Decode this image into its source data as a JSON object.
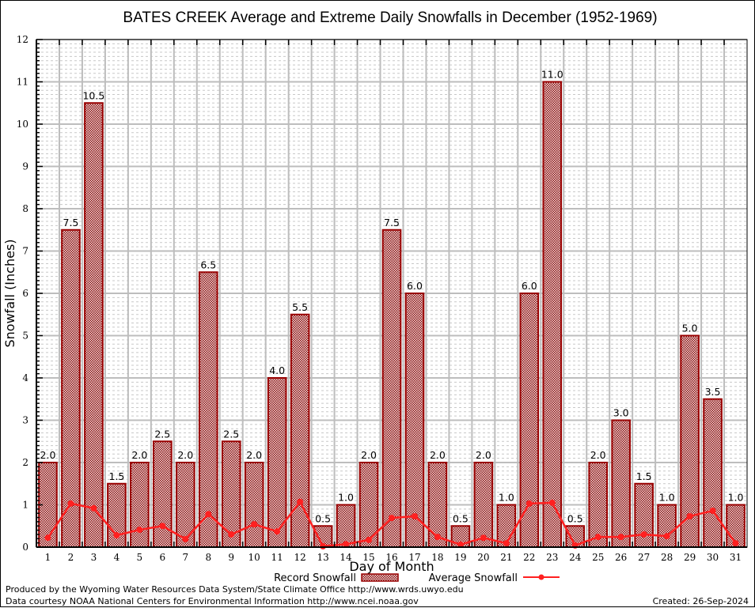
{
  "chart_data": {
    "type": "bar",
    "title": "BATES CREEK Average and Extreme Daily Snowfalls in December (1952-1969)",
    "xlabel": "Day of Month",
    "ylabel": "Snowfall (Inches)",
    "ylim": [
      0,
      12
    ],
    "yticks": [
      0,
      1,
      2,
      3,
      4,
      5,
      6,
      7,
      8,
      9,
      10,
      11,
      12
    ],
    "y_minor_step": 0.1,
    "grid": true,
    "categories": [
      "1",
      "2",
      "3",
      "4",
      "5",
      "6",
      "7",
      "8",
      "9",
      "10",
      "11",
      "12",
      "13",
      "14",
      "15",
      "16",
      "17",
      "18",
      "19",
      "20",
      "21",
      "22",
      "23",
      "24",
      "25",
      "26",
      "27",
      "28",
      "29",
      "30",
      "31"
    ],
    "series": [
      {
        "name": "Record Snowfall",
        "kind": "bar",
        "color": "#990000",
        "values": [
          2.0,
          7.5,
          10.5,
          1.5,
          2.0,
          2.5,
          2.0,
          6.5,
          2.5,
          2.0,
          4.0,
          5.5,
          0.5,
          1.0,
          2.0,
          7.5,
          6.0,
          2.0,
          0.5,
          2.0,
          1.0,
          6.0,
          11.0,
          0.5,
          2.0,
          3.0,
          1.5,
          1.0,
          5.0,
          3.5,
          1.0
        ],
        "labels": [
          "2.0",
          "7.5",
          "10.5",
          "1.5",
          "2.0",
          "2.5",
          "2.0",
          "6.5",
          "2.5",
          "2.0",
          "4.0",
          "5.5",
          "0.5",
          "1.0",
          "2.0",
          "7.5",
          "6.0",
          "2.0",
          "0.5",
          "2.0",
          "1.0",
          "6.0",
          "11.0",
          "0.5",
          "2.0",
          "3.0",
          "1.5",
          "1.0",
          "5.0",
          "3.5",
          "1.0"
        ]
      },
      {
        "name": "Average Snowfall",
        "kind": "line",
        "color": "#ff2020",
        "values": [
          0.22,
          1.03,
          0.92,
          0.28,
          0.41,
          0.5,
          0.19,
          0.78,
          0.3,
          0.54,
          0.37,
          1.07,
          0.02,
          0.07,
          0.17,
          0.69,
          0.73,
          0.24,
          0.06,
          0.22,
          0.09,
          1.03,
          1.05,
          0.04,
          0.24,
          0.24,
          0.3,
          0.26,
          0.73,
          0.86,
          0.09
        ]
      }
    ],
    "legend": {
      "placement": "bottom-center",
      "entries": [
        "Record Snowfall",
        "Average Snowfall"
      ]
    }
  },
  "footer": {
    "produced_by": "Produced by the Wyoming Water Resources Data System/State Climate Office http://www.wrds.uwyo.edu",
    "data_courtesy": "Data courtesy NOAA National Centers for Environmental Information http://www.ncei.noaa.gov",
    "created": "Created: 26-Sep-2024"
  }
}
